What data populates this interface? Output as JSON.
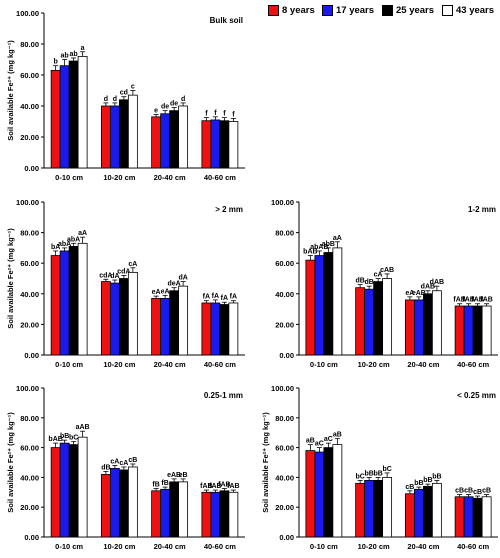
{
  "legend": {
    "items": [
      {
        "label": "8 years",
        "color": "#ee1111"
      },
      {
        "label": "17 years",
        "color": "#1a1aee"
      },
      {
        "label": "25 years",
        "color": "#000000"
      },
      {
        "label": "43 years",
        "color": "#ffffff"
      }
    ]
  },
  "chart_data": [
    {
      "type": "bar",
      "title": "Bulk soil",
      "ylabel": "Soil available Fe²⁺ (mg kg⁻¹)",
      "ylim": [
        0,
        100
      ],
      "yticks": [
        "0.00",
        "20.00",
        "40.00",
        "60.00",
        "80.00",
        "100.00"
      ],
      "categories": [
        "0-10 cm",
        "10-20 cm",
        "20-40 cm",
        "40-60 cm"
      ],
      "series": [
        {
          "name": "8 years",
          "values": [
            63,
            40,
            33,
            30.5
          ],
          "errors": [
            3,
            2,
            1.5,
            2
          ],
          "labels": [
            "b",
            "d",
            "e",
            "f"
          ]
        },
        {
          "name": "17 years",
          "values": [
            66,
            40,
            35,
            31
          ],
          "errors": [
            4,
            2,
            2,
            2
          ],
          "labels": [
            "ab",
            "d",
            "de",
            "f"
          ]
        },
        {
          "name": "25 years",
          "values": [
            69,
            44,
            37,
            30.5
          ],
          "errors": [
            2,
            2,
            2,
            2
          ],
          "labels": [
            "ab",
            "cd",
            "de",
            "f"
          ]
        },
        {
          "name": "43 years",
          "values": [
            72,
            47,
            40,
            30
          ],
          "errors": [
            3,
            3,
            2,
            2
          ],
          "labels": [
            "a",
            "c",
            "d",
            "f"
          ]
        }
      ]
    },
    {
      "type": "bar",
      "title": "> 2 mm",
      "ylabel": "Soil available Fe²⁺ (mg kg⁻¹)",
      "ylim": [
        0,
        100
      ],
      "yticks": [
        "0.00",
        "20.00",
        "40.00",
        "60.00",
        "80.00",
        "100.00"
      ],
      "categories": [
        "0-10 cm",
        "10-20 cm",
        "20-40 cm",
        "40-60 cm"
      ],
      "series": [
        {
          "name": "8 years",
          "values": [
            65,
            48,
            37,
            34
          ],
          "errors": [
            3,
            1.5,
            1.5,
            1.5
          ],
          "labels": [
            "bA",
            "cdA",
            "eA",
            "fA"
          ]
        },
        {
          "name": "17 years",
          "values": [
            68,
            47,
            37,
            34
          ],
          "errors": [
            2,
            2,
            2,
            2
          ],
          "labels": [
            "abA",
            "dA",
            "eA",
            "fA"
          ]
        },
        {
          "name": "25 years",
          "values": [
            71,
            50,
            42,
            33
          ],
          "errors": [
            2,
            2,
            2,
            1.5
          ],
          "labels": [
            "abA",
            "cdA",
            "deA",
            "fA"
          ]
        },
        {
          "name": "43 years",
          "values": [
            73,
            54,
            45,
            34
          ],
          "errors": [
            4,
            3,
            3,
            1.5
          ],
          "labels": [
            "aA",
            "cA",
            "dA",
            "fA"
          ]
        }
      ]
    },
    {
      "type": "bar",
      "title": "1-2 mm",
      "ylabel": "",
      "ylim": [
        0,
        100
      ],
      "yticks": [
        "0.00",
        "20.00",
        "40.00",
        "60.00",
        "80.00",
        "100.00"
      ],
      "categories": [
        "0-10 cm",
        "10-20 cm",
        "20-40 cm",
        "40-60 cm"
      ],
      "series": [
        {
          "name": "8 years",
          "values": [
            62,
            44,
            36,
            32
          ],
          "errors": [
            3,
            2,
            2,
            1.5
          ],
          "labels": [
            "bAB",
            "dB",
            "eA",
            "fAB"
          ]
        },
        {
          "name": "17 years",
          "values": [
            65,
            43,
            36,
            32
          ],
          "errors": [
            3,
            2,
            2,
            1.5
          ],
          "labels": [
            "abAB",
            "dB",
            "eAB",
            "fAB"
          ]
        },
        {
          "name": "25 years",
          "values": [
            67,
            48,
            40,
            32
          ],
          "errors": [
            3,
            2,
            2,
            1.5
          ],
          "labels": [
            "abB",
            "cA",
            "dAB",
            "fAB"
          ]
        },
        {
          "name": "43 years",
          "values": [
            70,
            50,
            42,
            32
          ],
          "errors": [
            4,
            3,
            3,
            1.5
          ],
          "labels": [
            "aA",
            "cAB",
            "dAB",
            "fAB"
          ]
        }
      ]
    },
    {
      "type": "bar",
      "title": "0.25-1 mm",
      "ylabel": "Soil available Fe²⁺ (mg kg⁻¹)",
      "ylim": [
        0,
        100
      ],
      "yticks": [
        "0.00",
        "20.00",
        "40.00",
        "60.00",
        "80.00",
        "100.00"
      ],
      "categories": [
        "0-10 cm",
        "10-20 cm",
        "20-40 cm",
        "40-60 cm"
      ],
      "series": [
        {
          "name": "8 years",
          "values": [
            60,
            42,
            31,
            30
          ],
          "errors": [
            3,
            2,
            1.5,
            1.5
          ],
          "labels": [
            "bAB",
            "dB",
            "fB",
            "fAB"
          ]
        },
        {
          "name": "17 years",
          "values": [
            63,
            46,
            32,
            30
          ],
          "errors": [
            2,
            2,
            1.5,
            1.5
          ],
          "labels": [
            "bB",
            "cA",
            "fB",
            "fAB"
          ]
        },
        {
          "name": "25 years",
          "values": [
            62,
            45,
            37,
            31
          ],
          "errors": [
            2,
            2,
            2,
            1.5
          ],
          "labels": [
            "bC",
            "cA",
            "eAB",
            "fAB"
          ]
        },
        {
          "name": "43 years",
          "values": [
            67,
            47,
            37,
            30
          ],
          "errors": [
            4,
            2,
            2,
            1.5
          ],
          "labels": [
            "aAB",
            "cB",
            "eB",
            "fAB"
          ]
        }
      ]
    },
    {
      "type": "bar",
      "title": "< 0.25 mm",
      "ylabel": "Soil available Fe²⁺ (mg kg⁻¹)",
      "ylim": [
        0,
        100
      ],
      "yticks": [
        "0.00",
        "20.00",
        "40.00",
        "60.00",
        "80.00",
        "100.00"
      ],
      "categories": [
        "0-10 cm",
        "10-20 cm",
        "20-40 cm",
        "40-60 cm"
      ],
      "series": [
        {
          "name": "8 years",
          "values": [
            58,
            36,
            29,
            27
          ],
          "errors": [
            4,
            2,
            2,
            1.5
          ],
          "labels": [
            "aB",
            "bC",
            "cB",
            "cB"
          ]
        },
        {
          "name": "17 years",
          "values": [
            57,
            38,
            32,
            27
          ],
          "errors": [
            3,
            2,
            1.5,
            1.5
          ],
          "labels": [
            "aC",
            "bB",
            "bB",
            "cB"
          ]
        },
        {
          "name": "25 years",
          "values": [
            60,
            38,
            34,
            26
          ],
          "errors": [
            3,
            2,
            1.5,
            1.5
          ],
          "labels": [
            "aC",
            "bB",
            "bB",
            "cB"
          ]
        },
        {
          "name": "43 years",
          "values": [
            62,
            40,
            36,
            27
          ],
          "errors": [
            4,
            3,
            2,
            1.5
          ],
          "labels": [
            "aB",
            "bC",
            "bB",
            "cB"
          ]
        }
      ]
    }
  ]
}
